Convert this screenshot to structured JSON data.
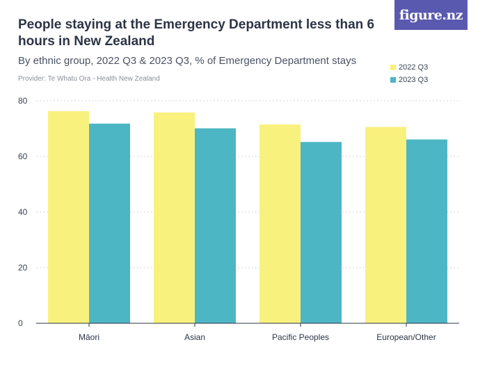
{
  "header": {
    "title": "People staying at the Emergency Department less than 6 hours in New Zealand",
    "subtitle": "By ethnic group, 2022 Q3 & 2023 Q3, % of Emergency Department stays",
    "provider": "Provider: Te Whatu Ora - Health New Zealand",
    "logo_text": "figure.nz",
    "logo_color": "#5a59b0"
  },
  "chart_data": {
    "type": "bar",
    "title": "People staying at the Emergency Department less than 6 hours in New Zealand",
    "subtitle": "By ethnic group, 2022 Q3 & 2023 Q3, % of Emergency Department stays",
    "categories": [
      "Māori",
      "Asian",
      "Pacific Peoples",
      "European/Other"
    ],
    "series": [
      {
        "name": "2022 Q3",
        "color": "#f9f17e",
        "values": [
          76.3,
          75.8,
          71.5,
          70.6
        ]
      },
      {
        "name": "2023 Q3",
        "color": "#4db6c4",
        "values": [
          71.8,
          70.1,
          65.2,
          66.1
        ]
      }
    ],
    "xlabel": "",
    "ylabel": "",
    "ylim": [
      0,
      80
    ],
    "yticks": [
      0,
      20,
      40,
      60,
      80
    ],
    "grid": true,
    "legend": "top-right"
  }
}
